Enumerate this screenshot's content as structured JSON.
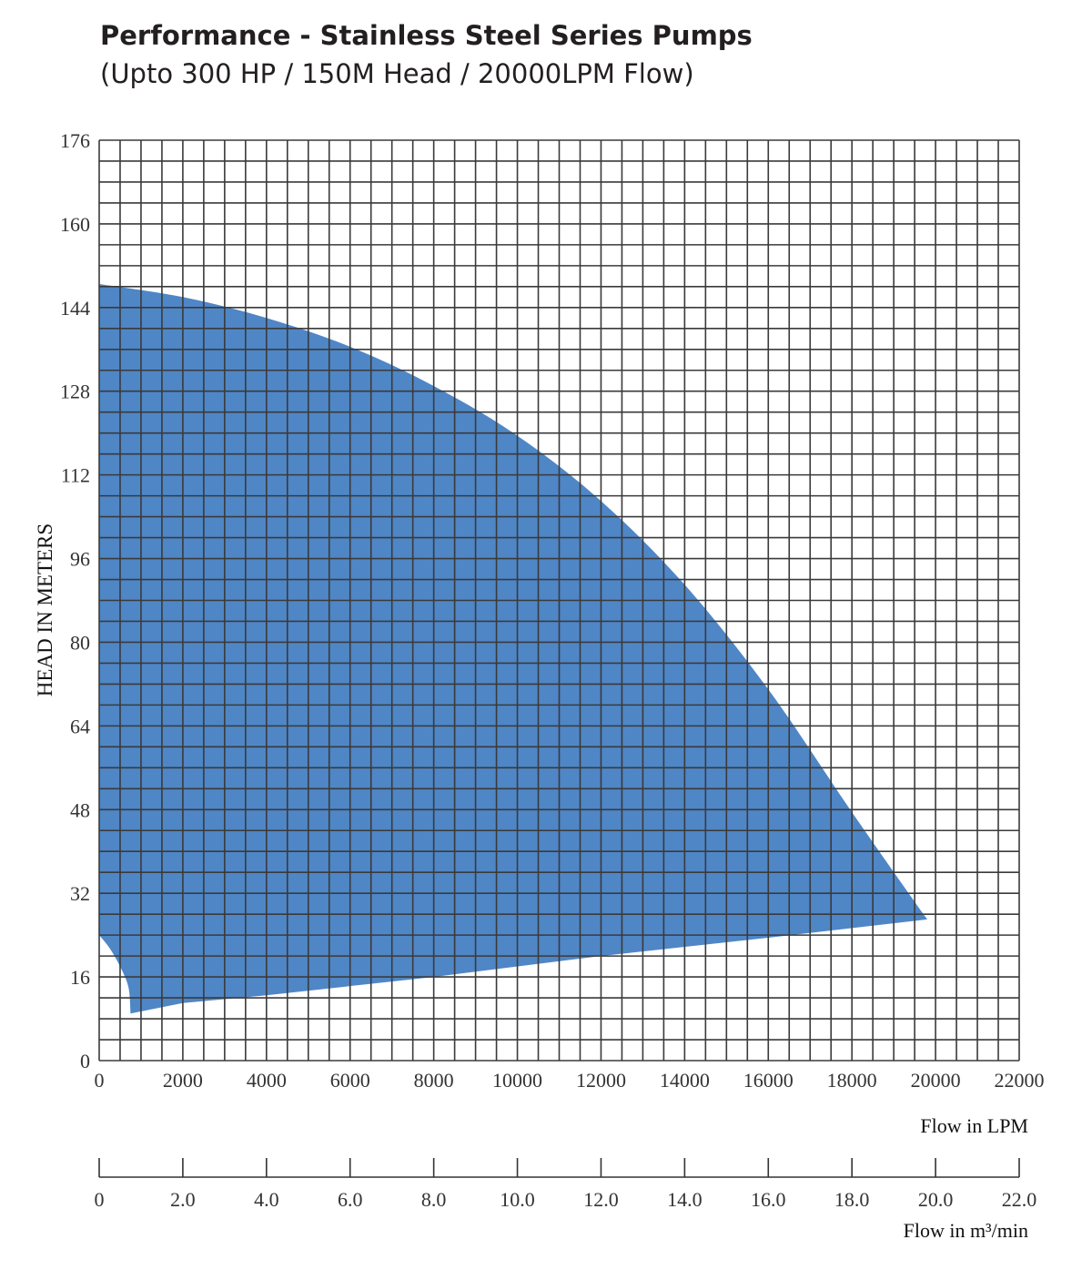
{
  "header": {
    "title": "Performance - Stainless Steel Series Pumps",
    "subtitle": "(Upto 300 HP / 150M Head / 20000LPM Flow)"
  },
  "chart_data": {
    "type": "area",
    "title": "Performance - Stainless Steel Series Pumps",
    "subtitle": "(Upto 300 HP / 150M Head / 20000LPM Flow)",
    "ylabel": "HEAD IN METERS",
    "xlabel": "Flow in LPM",
    "xlabel_secondary": "Flow in m³/min",
    "xlim": [
      0,
      22000
    ],
    "ylim": [
      0,
      176
    ],
    "y_ticks": [
      0,
      16,
      32,
      48,
      64,
      80,
      96,
      112,
      128,
      144,
      160,
      176
    ],
    "x_ticks": [
      0,
      2000,
      4000,
      6000,
      8000,
      10000,
      12000,
      14000,
      16000,
      18000,
      20000,
      22000
    ],
    "x_ticks_secondary": [
      "0",
      "2.0",
      "4.0",
      "6.0",
      "8.0",
      "10.0",
      "12.0",
      "14.0",
      "16.0",
      "18.0",
      "20.0",
      "22.0"
    ],
    "grid": true,
    "grid_minor_x": 500,
    "grid_minor_y": 4,
    "fill_color": "#4f86c6",
    "grid_color": "#3a3a3a",
    "envelope": {
      "upper": [
        [
          0,
          148.5
        ],
        [
          2000,
          146
        ],
        [
          4000,
          142
        ],
        [
          6000,
          136.5
        ],
        [
          8000,
          129
        ],
        [
          10000,
          119.5
        ],
        [
          12000,
          107
        ],
        [
          14000,
          91
        ],
        [
          16000,
          71
        ],
        [
          18000,
          47.5
        ],
        [
          19800,
          27
        ]
      ],
      "lower": [
        [
          19800,
          27
        ],
        [
          16000,
          23.5
        ],
        [
          12000,
          20
        ],
        [
          8000,
          16
        ],
        [
          4000,
          12.5
        ],
        [
          2000,
          11
        ],
        [
          750,
          9
        ]
      ],
      "left_edge": [
        [
          750,
          9
        ],
        [
          700,
          14
        ],
        [
          500,
          18
        ],
        [
          250,
          21.5
        ],
        [
          0,
          24
        ]
      ]
    }
  }
}
